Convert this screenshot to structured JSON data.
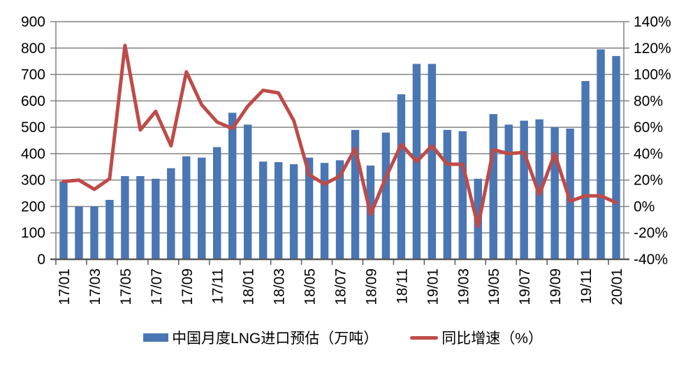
{
  "chart_data": {
    "type": "bar+line combo",
    "categories": [
      "17/01",
      "17/02",
      "17/03",
      "17/04",
      "17/05",
      "17/06",
      "17/07",
      "17/08",
      "17/09",
      "17/10",
      "17/11",
      "17/12",
      "18/01",
      "18/02",
      "18/03",
      "18/04",
      "18/05",
      "18/06",
      "18/07",
      "18/08",
      "18/09",
      "18/10",
      "18/11",
      "18/12",
      "19/01",
      "19/02",
      "19/03",
      "19/04",
      "19/05",
      "19/06",
      "19/07",
      "19/08",
      "19/09",
      "19/10",
      "19/11",
      "19/12",
      "20/01"
    ],
    "x_label_every": 2,
    "series": [
      {
        "name": "中国月度LNG进口预估（万吨）",
        "type": "bar",
        "axis": "left",
        "color": "#4A76B4",
        "values": [
          295,
          200,
          200,
          225,
          315,
          315,
          305,
          345,
          390,
          385,
          425,
          555,
          510,
          370,
          368,
          360,
          385,
          365,
          375,
          490,
          355,
          480,
          625,
          740,
          740,
          490,
          485,
          305,
          550,
          510,
          525,
          530,
          500,
          495,
          675,
          795,
          770
        ]
      },
      {
        "name": "同比增速（%）",
        "type": "line",
        "axis": "right",
        "color": "#BE4B48",
        "values": [
          19,
          20,
          13,
          21,
          122,
          58,
          72,
          46,
          102,
          77,
          64,
          59,
          76,
          88,
          86,
          65,
          24,
          17,
          23,
          44,
          -6,
          22,
          47,
          34,
          46,
          32,
          32,
          -15,
          43,
          40,
          41,
          9,
          40,
          4,
          8,
          8,
          3
        ]
      }
    ],
    "left_axis": {
      "min": 0,
      "max": 900,
      "step": 100,
      "ticks": [
        0,
        100,
        200,
        300,
        400,
        500,
        600,
        700,
        800,
        900
      ],
      "tick_labels": [
        "0",
        "100",
        "200",
        "300",
        "400",
        "500",
        "600",
        "700",
        "800",
        "900"
      ]
    },
    "right_axis": {
      "min": -40,
      "max": 140,
      "step": 20,
      "ticks": [
        -40,
        -20,
        0,
        20,
        40,
        60,
        80,
        100,
        120,
        140
      ],
      "tick_labels": [
        "-40%",
        "-20%",
        "0%",
        "20%",
        "40%",
        "60%",
        "80%",
        "100%",
        "120%",
        "140%"
      ]
    },
    "grid": true,
    "legend_position": "bottom",
    "colors": {
      "grid": "#828282",
      "axis_line": "#595959",
      "text": "#000000",
      "background": "#ffffff"
    }
  },
  "legend": {
    "bar_label": "中国月度LNG进口预估（万吨）",
    "line_label": "同比增速（%）"
  }
}
